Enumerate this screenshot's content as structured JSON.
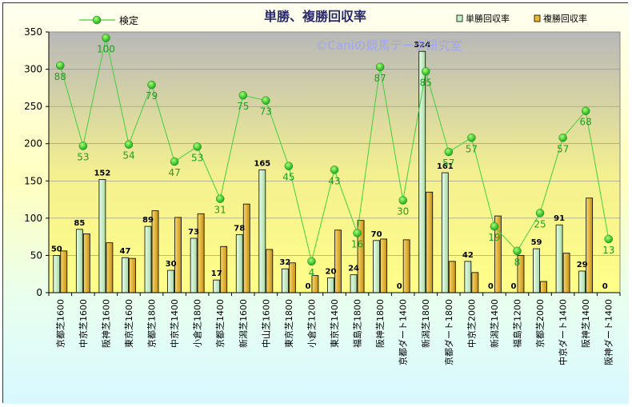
{
  "chart_data": {
    "type": "bar+line",
    "title": "単勝、複勝回収率",
    "watermark": "©Caniの競馬データ研究室",
    "ylim": [
      0,
      350
    ],
    "yticks": [
      0,
      50,
      100,
      150,
      200,
      250,
      300,
      350
    ],
    "categories": [
      "京都芝1600",
      "中京芝1600",
      "阪神芝1600",
      "東京芝1600",
      "京都芝1800",
      "中京芝1400",
      "小倉芝1800",
      "京都芝1400",
      "新潟芝1600",
      "中山芝1600",
      "東京芝1800",
      "小倉芝1200",
      "東京芝1400",
      "福島芝1800",
      "阪神芝1800",
      "京都ダート1400",
      "新潟芝1800",
      "京都ダート1800",
      "中京芝2000",
      "新潟芝1400",
      "福島芝1200",
      "京都芝2000",
      "中京ダート1400",
      "阪神芝1400",
      "阪神ダート1400"
    ],
    "series": [
      {
        "name": "単勝回収率",
        "type": "bar",
        "color": "#c8f0c8",
        "values": [
          50,
          85,
          152,
          47,
          89,
          30,
          73,
          17,
          78,
          165,
          32,
          0,
          20,
          24,
          70,
          0,
          324,
          161,
          42,
          0,
          0,
          59,
          91,
          29,
          0
        ],
        "labels": [
          "50",
          "85",
          "152",
          "47",
          "89",
          "30",
          "73",
          "17",
          "78",
          "165",
          "32",
          "0",
          "20",
          "24",
          "70",
          "0",
          "324",
          "161",
          "42",
          "0",
          "0",
          "59",
          "91",
          "29",
          "0"
        ]
      },
      {
        "name": "複勝回収率",
        "type": "bar",
        "color": "#e8b830",
        "values": [
          56,
          79,
          67,
          46,
          110,
          101,
          106,
          62,
          119,
          58,
          40,
          23,
          84,
          97,
          72,
          71,
          135,
          42,
          27,
          103,
          50,
          15,
          53,
          127,
          0
        ]
      },
      {
        "name": "検定",
        "type": "line",
        "color": "#40d040",
        "values": [
          305,
          197,
          342,
          199,
          279,
          176,
          196,
          126,
          265,
          258,
          170,
          42,
          165,
          80,
          303,
          124,
          297,
          189,
          208,
          89,
          56,
          107,
          208,
          244,
          72
        ],
        "labels": [
          "88",
          "53",
          "100",
          "54",
          "79",
          "47",
          "53",
          "31",
          "75",
          "73",
          "45",
          "4",
          "43",
          "16",
          "87",
          "30",
          "85",
          "57",
          "57",
          "19",
          "8",
          "25",
          "57",
          "68",
          "13"
        ]
      }
    ],
    "legend": "top"
  }
}
